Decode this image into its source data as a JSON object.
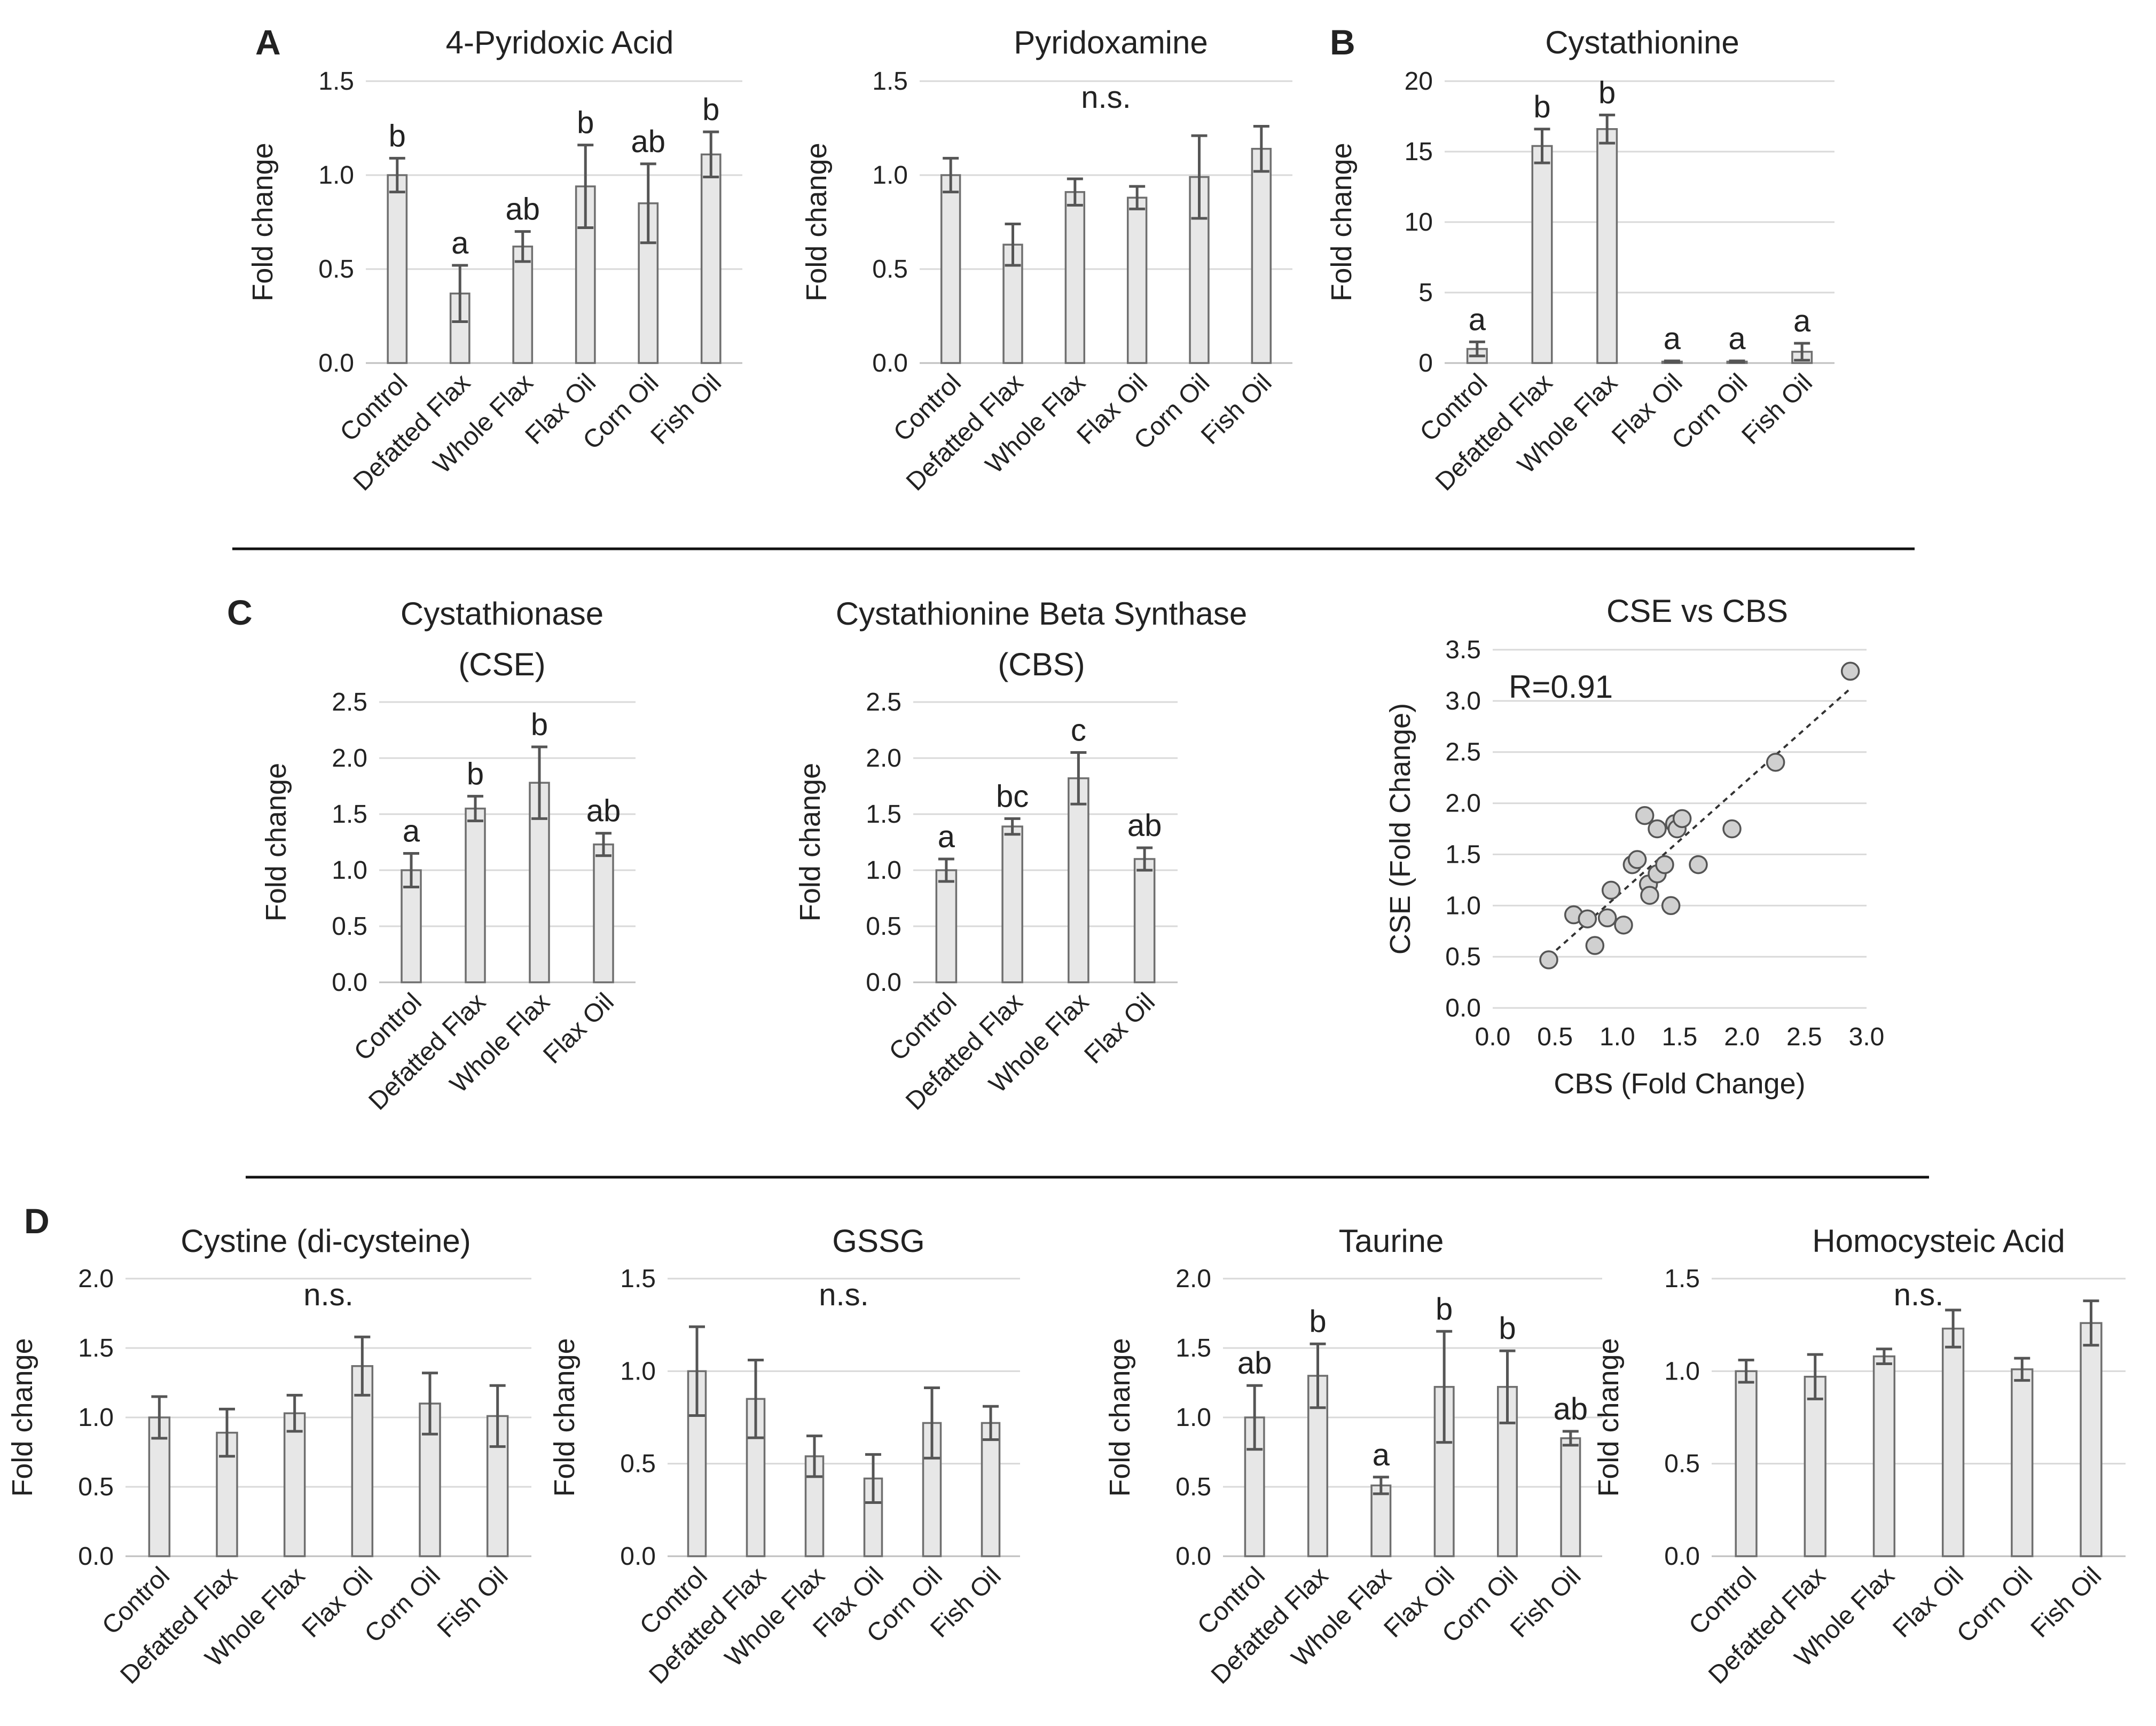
{
  "figure": {
    "panel_letters": [
      "A",
      "B",
      "C",
      "D"
    ],
    "colors": {
      "bar_fill": "#e7e7e7",
      "bar_stroke": "#6f6f6f",
      "grid": "#d9d9d9",
      "text": "#222222"
    }
  },
  "chart_data": [
    {
      "id": "pyridoxic",
      "type": "bar",
      "title": "4-Pyridoxic Acid",
      "ylabel": "Fold change",
      "xlabel": "",
      "categories": [
        "Control",
        "Defatted Flax",
        "Whole Flax",
        "Flax Oil",
        "Corn Oil",
        "Fish Oil"
      ],
      "values": [
        1.0,
        0.37,
        0.62,
        0.94,
        0.85,
        1.11
      ],
      "errors": [
        0.09,
        0.15,
        0.08,
        0.22,
        0.21,
        0.12
      ],
      "annotations": [
        "b",
        "a",
        "ab",
        "b",
        "ab",
        "b"
      ],
      "ylim": [
        0,
        1.5
      ],
      "yticks": [
        "0.0",
        "0.5",
        "1.0",
        "1.5"
      ],
      "grid": true
    },
    {
      "id": "pyridoxamine",
      "type": "bar",
      "title": "Pyridoxamine",
      "ylabel": "Fold change",
      "xlabel": "",
      "categories": [
        "Control",
        "Defatted Flax",
        "Whole Flax",
        "Flax Oil",
        "Corn Oil",
        "Fish Oil"
      ],
      "values": [
        1.0,
        0.63,
        0.91,
        0.88,
        0.99,
        1.14
      ],
      "errors": [
        0.09,
        0.11,
        0.07,
        0.06,
        0.22,
        0.12
      ],
      "note": "n.s.",
      "ylim": [
        0,
        1.5
      ],
      "yticks": [
        "0.0",
        "0.5",
        "1.0",
        "1.5"
      ],
      "grid": true
    },
    {
      "id": "cystathionine",
      "type": "bar",
      "title": "Cystathionine",
      "ylabel": "Fold change",
      "xlabel": "",
      "categories": [
        "Control",
        "Defatted Flax",
        "Whole Flax",
        "Flax Oil",
        "Corn Oil",
        "Fish Oil"
      ],
      "values": [
        1.0,
        15.4,
        16.6,
        0.1,
        0.1,
        0.8
      ],
      "errors": [
        0.5,
        1.2,
        1.0,
        0.05,
        0.05,
        0.6
      ],
      "annotations": [
        "a",
        "b",
        "b",
        "a",
        "a",
        "a"
      ],
      "ylim": [
        0,
        20
      ],
      "yticks": [
        "0",
        "5",
        "10",
        "15",
        "20"
      ],
      "grid": true
    },
    {
      "id": "cse",
      "type": "bar",
      "title": "Cystathionase",
      "subtitle": "(CSE)",
      "ylabel": "Fold change",
      "xlabel": "",
      "categories": [
        "Control",
        "Defatted Flax",
        "Whole Flax",
        "Flax Oil"
      ],
      "values": [
        1.0,
        1.55,
        1.78,
        1.23
      ],
      "errors": [
        0.15,
        0.11,
        0.32,
        0.1
      ],
      "annotations": [
        "a",
        "b",
        "b",
        "ab"
      ],
      "ylim": [
        0,
        2.5
      ],
      "yticks": [
        "0.0",
        "0.5",
        "1.0",
        "1.5",
        "2.0",
        "2.5"
      ],
      "grid": true
    },
    {
      "id": "cbs",
      "type": "bar",
      "title": "Cystathionine Beta Synthase",
      "subtitle": "(CBS)",
      "ylabel": "Fold change",
      "xlabel": "",
      "categories": [
        "Control",
        "Defatted Flax",
        "Whole Flax",
        "Flax Oil"
      ],
      "values": [
        1.0,
        1.39,
        1.82,
        1.1
      ],
      "errors": [
        0.1,
        0.07,
        0.23,
        0.1
      ],
      "annotations": [
        "a",
        "bc",
        "c",
        "ab"
      ],
      "ylim": [
        0,
        2.5
      ],
      "yticks": [
        "0.0",
        "0.5",
        "1.0",
        "1.5",
        "2.0",
        "2.5"
      ],
      "grid": true
    },
    {
      "id": "scatter",
      "type": "scatter",
      "title": "CSE vs CBS",
      "xlabel": "CBS (Fold Change)",
      "ylabel": "CSE (Fold Change)",
      "annotation": "R=0.91",
      "xlim": [
        0,
        3.0
      ],
      "ylim": [
        0,
        3.5
      ],
      "xticks": [
        "0.0",
        "0.5",
        "1.0",
        "1.5",
        "2.0",
        "2.5",
        "3.0"
      ],
      "yticks": [
        "0.0",
        "0.5",
        "1.0",
        "1.5",
        "2.0",
        "2.5",
        "3.0",
        "3.5"
      ],
      "grid": true,
      "points": [
        [
          0.45,
          0.47
        ],
        [
          0.65,
          0.91
        ],
        [
          0.76,
          0.87
        ],
        [
          0.82,
          0.61
        ],
        [
          0.92,
          0.88
        ],
        [
          0.95,
          1.15
        ],
        [
          1.05,
          0.81
        ],
        [
          1.12,
          1.4
        ],
        [
          1.16,
          1.45
        ],
        [
          1.22,
          1.88
        ],
        [
          1.25,
          1.21
        ],
        [
          1.26,
          1.1
        ],
        [
          1.32,
          1.75
        ],
        [
          1.32,
          1.31
        ],
        [
          1.38,
          1.4
        ],
        [
          1.43,
          1.0
        ],
        [
          1.46,
          1.8
        ],
        [
          1.48,
          1.75
        ],
        [
          1.52,
          1.85
        ],
        [
          1.65,
          1.4
        ],
        [
          1.92,
          1.75
        ],
        [
          2.27,
          2.4
        ],
        [
          2.87,
          3.29
        ]
      ],
      "fit_line": {
        "x": [
          0.45,
          2.87
        ],
        "y": [
          0.5,
          3.12
        ]
      }
    },
    {
      "id": "cystine",
      "type": "bar",
      "title": "Cystine (di-cysteine)",
      "ylabel": "Fold change",
      "xlabel": "",
      "categories": [
        "Control",
        "Defatted Flax",
        "Whole Flax",
        "Flax Oil",
        "Corn Oil",
        "Fish Oil"
      ],
      "values": [
        1.0,
        0.89,
        1.03,
        1.37,
        1.1,
        1.01
      ],
      "errors": [
        0.15,
        0.17,
        0.13,
        0.21,
        0.22,
        0.22
      ],
      "note": "n.s.",
      "ylim": [
        0,
        2.0
      ],
      "yticks": [
        "0.0",
        "0.5",
        "1.0",
        "1.5",
        "2.0"
      ],
      "grid": true
    },
    {
      "id": "gssg",
      "type": "bar",
      "title": "GSSG",
      "ylabel": "Fold change",
      "xlabel": "",
      "categories": [
        "Control",
        "Defatted Flax",
        "Whole Flax",
        "Flax Oil",
        "Corn Oil",
        "Fish Oil"
      ],
      "values": [
        1.0,
        0.85,
        0.54,
        0.42,
        0.72,
        0.72
      ],
      "errors": [
        0.24,
        0.21,
        0.11,
        0.13,
        0.19,
        0.09
      ],
      "note": "n.s.",
      "ylim": [
        0,
        1.5
      ],
      "yticks": [
        "0.0",
        "0.5",
        "1.0",
        "1.5"
      ],
      "grid": true
    },
    {
      "id": "taurine",
      "type": "bar",
      "title": "Taurine",
      "ylabel": "Fold change",
      "xlabel": "",
      "categories": [
        "Control",
        "Defatted Flax",
        "Whole Flax",
        "Flax Oil",
        "Corn Oil",
        "Fish Oil"
      ],
      "values": [
        1.0,
        1.3,
        0.51,
        1.22,
        1.22,
        0.85
      ],
      "errors": [
        0.23,
        0.23,
        0.06,
        0.4,
        0.26,
        0.05
      ],
      "annotations": [
        "ab",
        "b",
        "a",
        "b",
        "b",
        "ab"
      ],
      "ylim": [
        0,
        2.0
      ],
      "yticks": [
        "0.0",
        "0.5",
        "1.0",
        "1.5",
        "2.0"
      ],
      "grid": true
    },
    {
      "id": "homocysteic",
      "type": "bar",
      "title": "Homocysteic Acid",
      "ylabel": "Fold change",
      "xlabel": "",
      "categories": [
        "Control",
        "Defatted Flax",
        "Whole Flax",
        "Flax Oil",
        "Corn Oil",
        "Fish Oil"
      ],
      "values": [
        1.0,
        0.97,
        1.08,
        1.23,
        1.01,
        1.26
      ],
      "errors": [
        0.06,
        0.12,
        0.04,
        0.1,
        0.06,
        0.12
      ],
      "note": "n.s.",
      "ylim": [
        0,
        1.5
      ],
      "yticks": [
        "0.0",
        "0.5",
        "1.0",
        "1.5"
      ],
      "grid": true
    }
  ]
}
